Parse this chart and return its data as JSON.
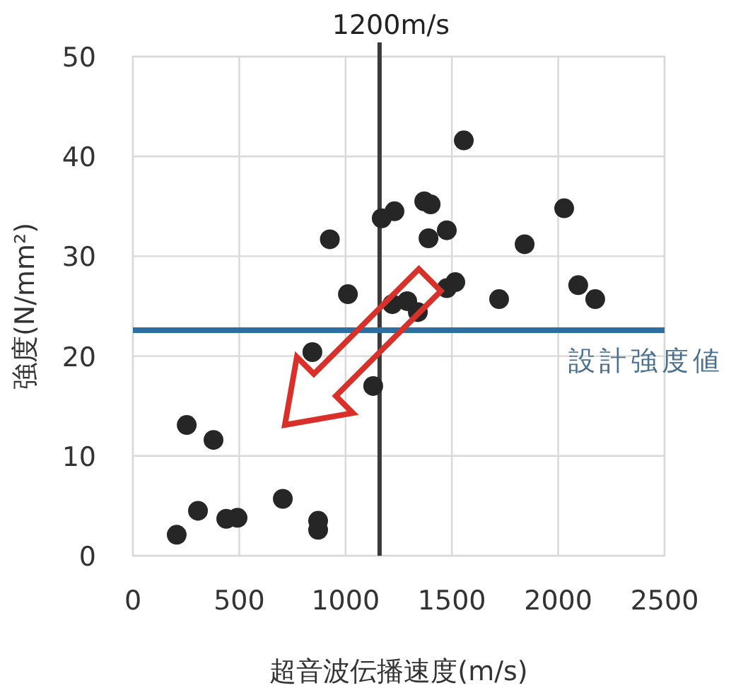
{
  "chart_data": {
    "type": "scatter",
    "xlabel": "超音波伝播速度(m/s)",
    "ylabel": "強度(N/mm²)",
    "xlim": [
      0,
      2500
    ],
    "ylim": [
      0,
      50
    ],
    "xticks": [
      0,
      500,
      1000,
      1500,
      2000,
      2500
    ],
    "yticks": [
      0,
      10,
      20,
      30,
      40,
      50
    ],
    "grid": true,
    "marker": "circle",
    "series": [
      {
        "color": "#262626",
        "x": [
          1556,
          926,
          1011,
          1170,
          1230,
          1370,
          1400,
          1390,
          1476,
          2028,
          1842,
          1722,
          2094,
          2174,
          1516,
          1476,
          1220,
          1290,
          1340,
          844,
          1130,
          253,
          379,
          306,
          206,
          439,
          492,
          705,
          871,
          871
        ],
        "values": [
          41.6,
          31.7,
          26.2,
          33.8,
          34.5,
          35.5,
          35.2,
          31.8,
          32.6,
          34.8,
          31.2,
          25.7,
          27.1,
          25.7,
          27.4,
          26.8,
          25.2,
          25.5,
          24.4,
          20.4,
          17.0,
          13.1,
          11.6,
          4.5,
          2.1,
          3.7,
          3.8,
          5.7,
          3.5,
          2.6
        ]
      }
    ],
    "ref_lines": [
      {
        "axis": "x",
        "value": 1160,
        "label": "1200m/s",
        "color": "#3a3a3a"
      },
      {
        "axis": "y",
        "value": 22.6,
        "label": "設計強度値",
        "color": "#2e6fa3"
      }
    ]
  }
}
